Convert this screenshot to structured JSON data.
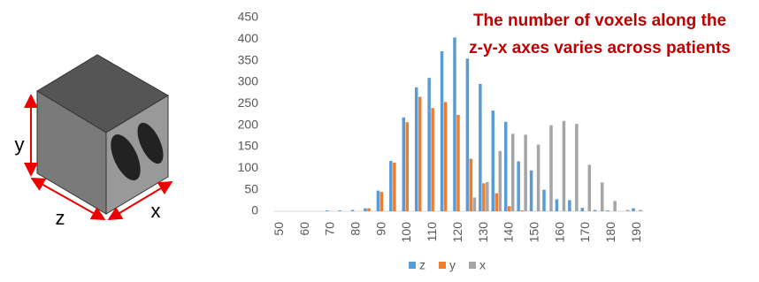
{
  "illustration": {
    "labels": {
      "y": "y",
      "z": "z",
      "x": "x"
    }
  },
  "chart_data": {
    "type": "bar",
    "annotation": [
      "The number of voxels along the",
      "z-y-x axes varies across patients"
    ],
    "categories": [
      50,
      null,
      60,
      null,
      70,
      null,
      80,
      null,
      90,
      null,
      100,
      null,
      110,
      null,
      120,
      null,
      130,
      null,
      140,
      null,
      150,
      null,
      160,
      null,
      170,
      null,
      180,
      null,
      190
    ],
    "series": [
      {
        "name": "z",
        "color": "#5b9bd5",
        "values": [
          0,
          0,
          0,
          0,
          2,
          2,
          3,
          7,
          48,
          117,
          218,
          288,
          310,
          372,
          404,
          355,
          296,
          234,
          208,
          116,
          95,
          50,
          28,
          26,
          8,
          3,
          2,
          0,
          7
        ]
      },
      {
        "name": "y",
        "color": "#ed7d31",
        "values": [
          0,
          0,
          0,
          0,
          0,
          0,
          0,
          7,
          45,
          113,
          207,
          266,
          240,
          254,
          224,
          122,
          65,
          42,
          12,
          2,
          0,
          0,
          0,
          0,
          0,
          0,
          0,
          0,
          0
        ]
      },
      {
        "name": "x",
        "color": "#a5a5a5",
        "values": [
          0,
          0,
          0,
          0,
          0,
          0,
          0,
          0,
          0,
          0,
          0,
          0,
          0,
          0,
          0,
          32,
          68,
          140,
          180,
          178,
          155,
          200,
          210,
          203,
          108,
          67,
          24,
          3,
          3
        ]
      }
    ],
    "ylim": [
      0,
      450
    ],
    "yticks": [
      0,
      50,
      100,
      150,
      200,
      250,
      300,
      350,
      400,
      450
    ],
    "legend": "bottom"
  }
}
